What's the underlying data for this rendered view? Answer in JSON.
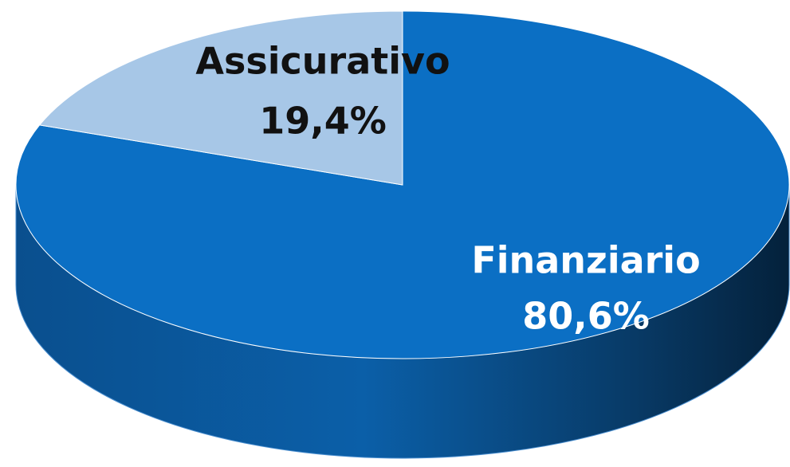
{
  "chart_data": {
    "type": "pie",
    "categories": [
      "Finanziario",
      "Assicurativo"
    ],
    "values": [
      80.6,
      19.4
    ],
    "value_labels": [
      "80,6%",
      "19,4%"
    ],
    "colors": [
      "#0b6fc4",
      "#a7c7e7"
    ],
    "label_colors": [
      "#ffffff",
      "#111111"
    ]
  }
}
